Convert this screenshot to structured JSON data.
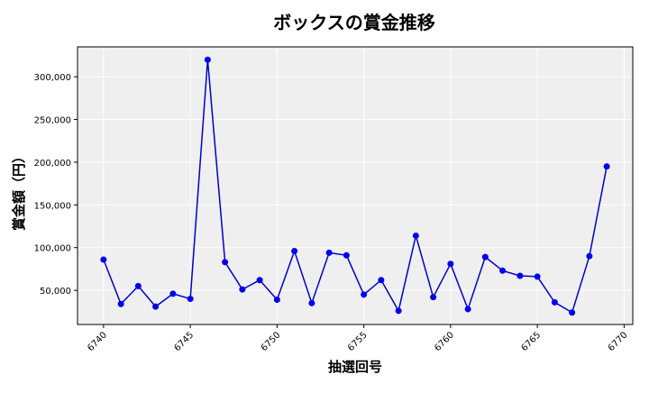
{
  "chart_data": {
    "type": "line",
    "title": "ボックスの賞金推移",
    "xlabel": "抽選回号",
    "ylabel": "賞金額（円）",
    "xlim": [
      6738.5,
      6770.5
    ],
    "ylim": [
      10000,
      335000
    ],
    "x_ticks": [
      6740,
      6745,
      6750,
      6755,
      6760,
      6765,
      6770
    ],
    "x_tick_labels": [
      "6740",
      "6745",
      "6750",
      "6755",
      "6760",
      "6765",
      "6770"
    ],
    "y_ticks": [
      50000,
      100000,
      150000,
      200000,
      250000,
      300000
    ],
    "y_tick_labels": [
      "50,000",
      "100,000",
      "150,000",
      "200,000",
      "250,000",
      "300,000"
    ],
    "grid": true,
    "line_color": "#0000cc",
    "marker_color": "#0000ee",
    "plot_background": "#efefef",
    "series": [
      {
        "x": [
          6740,
          6741,
          6742,
          6743,
          6744,
          6745,
          6746,
          6747,
          6748,
          6749,
          6750,
          6751,
          6752,
          6753,
          6754,
          6755,
          6756,
          6757,
          6758,
          6759,
          6760,
          6761,
          6762,
          6763,
          6764,
          6765,
          6766,
          6767,
          6768,
          6769
        ],
        "y": [
          86000,
          34000,
          55000,
          31000,
          46000,
          40000,
          320000,
          83000,
          51000,
          62000,
          39000,
          96000,
          35000,
          94000,
          91000,
          45000,
          62000,
          26000,
          114000,
          42000,
          81000,
          28000,
          89000,
          73000,
          67000,
          66000,
          36000,
          24000,
          90000,
          195000
        ]
      }
    ]
  }
}
